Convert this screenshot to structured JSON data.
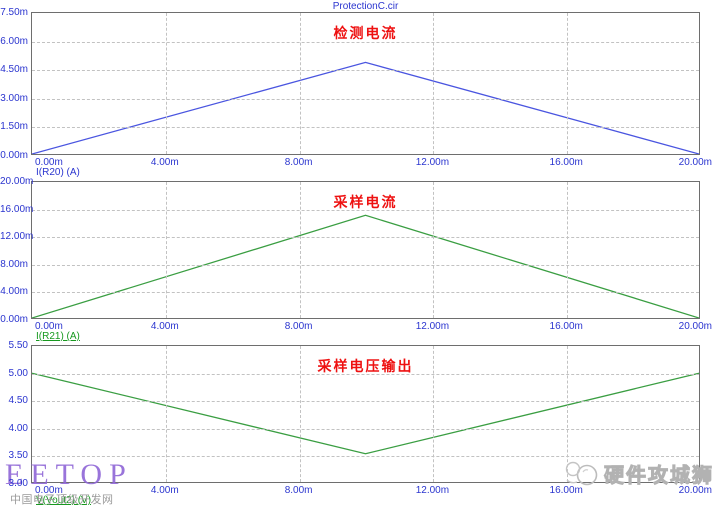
{
  "header": {
    "title": "ProtectionC.cir"
  },
  "chart_data": [
    {
      "type": "line",
      "title": "检测电流",
      "curve_label": "I(R20) (A)",
      "label_style": "blue",
      "label_underline": false,
      "xlim": [
        0,
        20
      ],
      "ylim": [
        0,
        7.5
      ],
      "grid": true,
      "x_ticks": [
        {
          "v": 0,
          "label": "0.00m"
        },
        {
          "v": 4,
          "label": "4.00m"
        },
        {
          "v": 8,
          "label": "8.00m"
        },
        {
          "v": 12,
          "label": "12.00m"
        },
        {
          "v": 16,
          "label": "16.00m"
        },
        {
          "v": 20,
          "label": "20.00m"
        }
      ],
      "y_ticks": [
        {
          "v": 7.5,
          "label": "7.50m"
        },
        {
          "v": 6.0,
          "label": "6.00m"
        },
        {
          "v": 4.5,
          "label": "4.50m"
        },
        {
          "v": 3.0,
          "label": "3.00m"
        },
        {
          "v": 1.5,
          "label": "1.50m"
        },
        {
          "v": 0.0,
          "label": "0.00m"
        }
      ],
      "series": [
        {
          "name": "I(R20)",
          "color": "#4a55e0",
          "x": [
            0,
            10,
            20
          ],
          "y": [
            0,
            4.87,
            0
          ]
        }
      ]
    },
    {
      "type": "line",
      "title": "采样电流",
      "curve_label": "I(R21) (A)",
      "label_style": "green",
      "label_underline": true,
      "xlim": [
        0,
        20
      ],
      "ylim": [
        0,
        20
      ],
      "grid": true,
      "x_ticks": [
        {
          "v": 0,
          "label": "0.00m"
        },
        {
          "v": 4,
          "label": "4.00m"
        },
        {
          "v": 8,
          "label": "8.00m"
        },
        {
          "v": 12,
          "label": "12.00m"
        },
        {
          "v": 16,
          "label": "16.00m"
        },
        {
          "v": 20,
          "label": "20.00m"
        }
      ],
      "y_ticks": [
        {
          "v": 20,
          "label": "20.00m"
        },
        {
          "v": 16,
          "label": "16.00m"
        },
        {
          "v": 12,
          "label": "12.00m"
        },
        {
          "v": 8,
          "label": "8.00m"
        },
        {
          "v": 4,
          "label": "4.00m"
        },
        {
          "v": 0,
          "label": "0.00m"
        }
      ],
      "series": [
        {
          "name": "I(R21)",
          "color": "#3a9e42",
          "x": [
            0,
            10,
            20
          ],
          "y": [
            0,
            15.1,
            0
          ]
        }
      ]
    },
    {
      "type": "line",
      "title": "采样电压输出",
      "curve_label": "V(Vout2) (V)",
      "label_style": "green",
      "label_underline": true,
      "xlim": [
        0,
        20
      ],
      "ylim": [
        3.0,
        5.5
      ],
      "grid": true,
      "x_ticks": [
        {
          "v": 0,
          "label": "0.00m"
        },
        {
          "v": 4,
          "label": "4.00m"
        },
        {
          "v": 8,
          "label": "8.00m"
        },
        {
          "v": 12,
          "label": "12.00m"
        },
        {
          "v": 16,
          "label": "16.00m"
        },
        {
          "v": 20,
          "label": "20.00m"
        }
      ],
      "y_ticks": [
        {
          "v": 5.5,
          "label": "5.50"
        },
        {
          "v": 5.0,
          "label": "5.00"
        },
        {
          "v": 4.5,
          "label": "4.50"
        },
        {
          "v": 4.0,
          "label": "4.00"
        },
        {
          "v": 3.5,
          "label": "3.50"
        },
        {
          "v": 3.0,
          "label": "3.00"
        }
      ],
      "series": [
        {
          "name": "V(Vout2)",
          "color": "#3a9e42",
          "x": [
            0,
            10,
            20
          ],
          "y": [
            5.0,
            3.52,
            5.0
          ]
        }
      ]
    }
  ],
  "watermarks": {
    "eetop": "EETOP",
    "eetop_subtitle": "中国电子顶级开发网",
    "brand": "硬件攻城狮"
  },
  "colors": {
    "axis_label_blue": "#2b35cf",
    "curve_blue": "#4a55e0",
    "curve_green": "#3a9e42",
    "title_red": "#ee1111",
    "grid_gray": "#c2c2c2",
    "eetop_purple": "#8f66d6"
  }
}
